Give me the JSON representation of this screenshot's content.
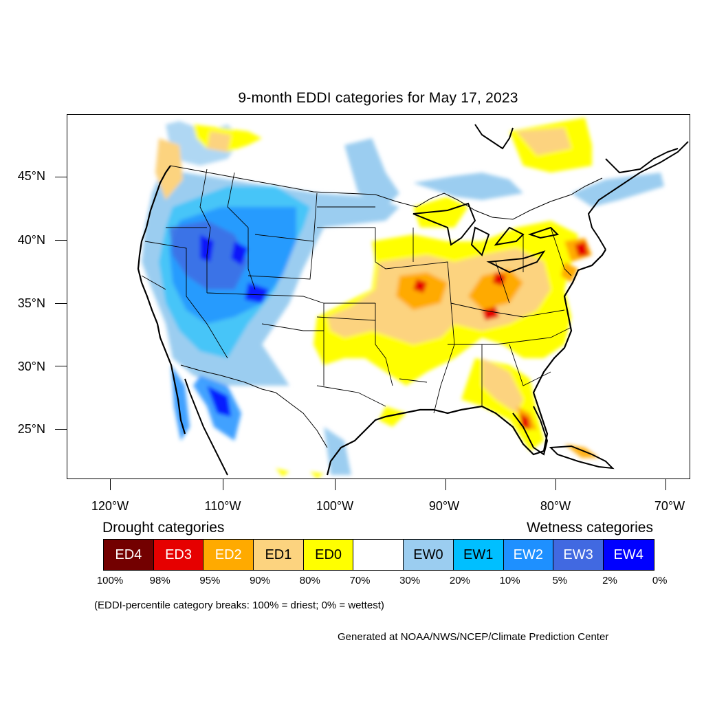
{
  "title": "9-month EDDI categories for May 17, 2023",
  "lat_labels": [
    "45°N",
    "40°N",
    "35°N",
    "30°N",
    "25°N"
  ],
  "lon_labels": [
    "120°W",
    "110°W",
    "100°W",
    "90°W",
    "80°W",
    "70°W"
  ],
  "legend": {
    "drought_heading": "Drought categories",
    "wetness_heading": "Wetness categories",
    "categories": [
      {
        "label": "ED4",
        "color": "#730000",
        "text_color": "#ffffff"
      },
      {
        "label": "ED3",
        "color": "#e60000",
        "text_color": "#ffffff"
      },
      {
        "label": "ED2",
        "color": "#ffaa00",
        "text_color": "#ffffff"
      },
      {
        "label": "ED1",
        "color": "#fcd37f",
        "text_color": "#000000"
      },
      {
        "label": "ED0",
        "color": "#ffff00",
        "text_color": "#000000"
      },
      {
        "label": "",
        "color": "#ffffff",
        "text_color": "#000000"
      },
      {
        "label": "EW0",
        "color": "#9bcdf0",
        "text_color": "#000000"
      },
      {
        "label": "EW1",
        "color": "#00bfff",
        "text_color": "#000000"
      },
      {
        "label": "EW2",
        "color": "#1e90ff",
        "text_color": "#ffffff"
      },
      {
        "label": "EW3",
        "color": "#4169e1",
        "text_color": "#ffffff"
      },
      {
        "label": "EW4",
        "color": "#0000ff",
        "text_color": "#ffffff"
      }
    ],
    "percentiles": [
      "100%",
      "98%",
      "95%",
      "90%",
      "80%",
      "70%",
      "30%",
      "20%",
      "10%",
      "5%",
      "2%",
      "0%"
    ]
  },
  "note": "(EDDI-percentile category breaks: 100% = driest; 0% = wettest)",
  "credit": "Generated at NOAA/NWS/NCEP/Climate Prediction Center"
}
